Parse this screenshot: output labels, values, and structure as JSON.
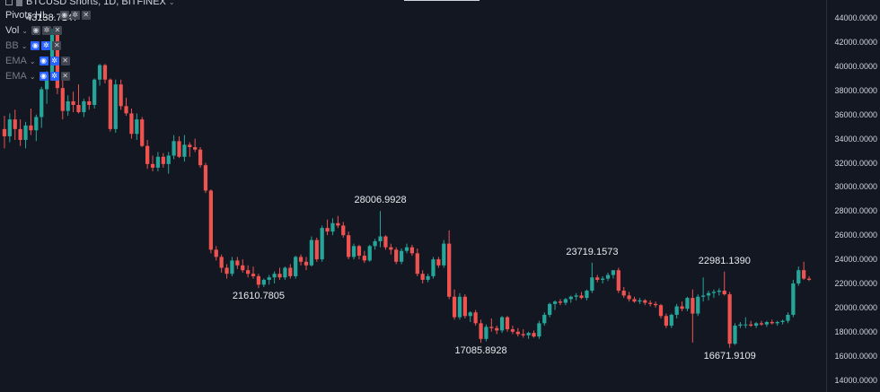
{
  "header": {
    "symbol_title": "BTCUSD Shorts, 1D, BITFINEX",
    "chevron": "⌄"
  },
  "legend": {
    "items": [
      {
        "label": "Pivots HL",
        "controls": [
          "eye-icon",
          "gear-icon",
          "close-icon"
        ],
        "dim": false
      },
      {
        "label": "Vol",
        "controls": [
          "eye-icon",
          "gear-icon",
          "close-icon"
        ],
        "dim": false
      },
      {
        "label": "BB",
        "controls": [
          "eye-off-icon",
          "gear-icon",
          "close-icon"
        ],
        "dim": true
      },
      {
        "label": "EMA",
        "controls": [
          "eye-off-icon",
          "gear-icon",
          "close-icon"
        ],
        "dim": true
      },
      {
        "label": "EMA",
        "controls": [
          "eye-off-icon",
          "gear-icon",
          "close-icon"
        ],
        "dim": true
      }
    ]
  },
  "colors": {
    "background": "#131722",
    "up": "#26a69a",
    "down": "#ef5350",
    "axis_text": "#d1d4dc",
    "accent": "#2962ff"
  },
  "chart_data": {
    "type": "candlestick",
    "yaxis": {
      "ylim": [
        13000,
        45500
      ],
      "ticks": [
        "14000.0000",
        "16000.0000",
        "18000.0000",
        "20000.0000",
        "22000.0000",
        "24000.0000",
        "26000.0000",
        "28000.0000",
        "30000.0000",
        "32000.0000",
        "34000.0000",
        "36000.0000",
        "38000.0000",
        "40000.0000",
        "42000.0000",
        "44000.0000"
      ]
    },
    "candles": [
      {
        "o": 34800,
        "h": 35900,
        "l": 33200,
        "c": 34200
      },
      {
        "o": 34200,
        "h": 36100,
        "l": 33700,
        "c": 35600
      },
      {
        "o": 35600,
        "h": 36400,
        "l": 33900,
        "c": 34800
      },
      {
        "o": 34800,
        "h": 35600,
        "l": 33400,
        "c": 33900
      },
      {
        "o": 33900,
        "h": 35400,
        "l": 33200,
        "c": 35100
      },
      {
        "o": 35100,
        "h": 36500,
        "l": 34300,
        "c": 34700
      },
      {
        "o": 34700,
        "h": 36000,
        "l": 33800,
        "c": 35800
      },
      {
        "o": 35800,
        "h": 38300,
        "l": 34900,
        "c": 38100
      },
      {
        "o": 38100,
        "h": 39600,
        "l": 36900,
        "c": 39300
      },
      {
        "o": 39300,
        "h": 43138,
        "l": 38800,
        "c": 42600
      },
      {
        "o": 42600,
        "h": 43100,
        "l": 37700,
        "c": 38200
      },
      {
        "o": 38200,
        "h": 39300,
        "l": 35600,
        "c": 36300
      },
      {
        "o": 36300,
        "h": 37600,
        "l": 35900,
        "c": 37100
      },
      {
        "o": 37100,
        "h": 37900,
        "l": 36200,
        "c": 36800
      },
      {
        "o": 36800,
        "h": 38500,
        "l": 36100,
        "c": 36200
      },
      {
        "o": 36200,
        "h": 37300,
        "l": 35800,
        "c": 37100
      },
      {
        "o": 37100,
        "h": 37500,
        "l": 36400,
        "c": 36800
      },
      {
        "o": 36800,
        "h": 39000,
        "l": 36500,
        "c": 38900
      },
      {
        "o": 38900,
        "h": 40200,
        "l": 38400,
        "c": 40100
      },
      {
        "o": 40100,
        "h": 40200,
        "l": 38600,
        "c": 38900
      },
      {
        "o": 38900,
        "h": 39000,
        "l": 34600,
        "c": 34800
      },
      {
        "o": 34800,
        "h": 38900,
        "l": 34500,
        "c": 38500
      },
      {
        "o": 38500,
        "h": 38900,
        "l": 36400,
        "c": 36700
      },
      {
        "o": 36700,
        "h": 37400,
        "l": 35900,
        "c": 36100
      },
      {
        "o": 36100,
        "h": 36500,
        "l": 34000,
        "c": 34400
      },
      {
        "o": 34400,
        "h": 36100,
        "l": 33900,
        "c": 35600
      },
      {
        "o": 35600,
        "h": 35800,
        "l": 33300,
        "c": 33400
      },
      {
        "o": 33400,
        "h": 33900,
        "l": 31500,
        "c": 31900
      },
      {
        "o": 31900,
        "h": 32600,
        "l": 31300,
        "c": 31600
      },
      {
        "o": 31600,
        "h": 32900,
        "l": 31300,
        "c": 32500
      },
      {
        "o": 32500,
        "h": 32800,
        "l": 31600,
        "c": 31900
      },
      {
        "o": 31900,
        "h": 32900,
        "l": 31100,
        "c": 32600
      },
      {
        "o": 32600,
        "h": 34300,
        "l": 32300,
        "c": 33800
      },
      {
        "o": 33800,
        "h": 34200,
        "l": 32400,
        "c": 32500
      },
      {
        "o": 32500,
        "h": 34300,
        "l": 32100,
        "c": 33500
      },
      {
        "o": 33500,
        "h": 33700,
        "l": 32500,
        "c": 33300
      },
      {
        "o": 33300,
        "h": 34000,
        "l": 32900,
        "c": 33100
      },
      {
        "o": 33100,
        "h": 33300,
        "l": 31600,
        "c": 31800
      },
      {
        "o": 31800,
        "h": 32000,
        "l": 29500,
        "c": 29700
      },
      {
        "o": 29700,
        "h": 29800,
        "l": 24500,
        "c": 24800
      },
      {
        "o": 24800,
        "h": 25100,
        "l": 23900,
        "c": 24200
      },
      {
        "o": 24200,
        "h": 24400,
        "l": 22900,
        "c": 23300
      },
      {
        "o": 23300,
        "h": 23600,
        "l": 22400,
        "c": 22800
      },
      {
        "o": 22800,
        "h": 24200,
        "l": 22600,
        "c": 23900
      },
      {
        "o": 23900,
        "h": 24200,
        "l": 23200,
        "c": 23500
      },
      {
        "o": 23500,
        "h": 24000,
        "l": 22900,
        "c": 23100
      },
      {
        "o": 23100,
        "h": 23500,
        "l": 22500,
        "c": 22800
      },
      {
        "o": 22800,
        "h": 23400,
        "l": 22400,
        "c": 22600
      },
      {
        "o": 22600,
        "h": 22800,
        "l": 21610,
        "c": 21900
      },
      {
        "o": 21900,
        "h": 22400,
        "l": 21700,
        "c": 22300
      },
      {
        "o": 22300,
        "h": 22700,
        "l": 21900,
        "c": 22500
      },
      {
        "o": 22500,
        "h": 23000,
        "l": 22000,
        "c": 22800
      },
      {
        "o": 22800,
        "h": 23300,
        "l": 22300,
        "c": 22500
      },
      {
        "o": 22500,
        "h": 23400,
        "l": 22300,
        "c": 23300
      },
      {
        "o": 23300,
        "h": 23600,
        "l": 22400,
        "c": 22600
      },
      {
        "o": 22600,
        "h": 24300,
        "l": 22400,
        "c": 24200
      },
      {
        "o": 24200,
        "h": 24400,
        "l": 23500,
        "c": 23800
      },
      {
        "o": 23800,
        "h": 24200,
        "l": 23100,
        "c": 23500
      },
      {
        "o": 23500,
        "h": 25900,
        "l": 23400,
        "c": 25600
      },
      {
        "o": 25600,
        "h": 25800,
        "l": 23800,
        "c": 24000
      },
      {
        "o": 24000,
        "h": 26800,
        "l": 23800,
        "c": 26600
      },
      {
        "o": 26600,
        "h": 27300,
        "l": 26000,
        "c": 26300
      },
      {
        "o": 26300,
        "h": 27400,
        "l": 26000,
        "c": 27000
      },
      {
        "o": 27000,
        "h": 27600,
        "l": 26600,
        "c": 26800
      },
      {
        "o": 26800,
        "h": 27100,
        "l": 25800,
        "c": 26000
      },
      {
        "o": 26000,
        "h": 26300,
        "l": 24000,
        "c": 24200
      },
      {
        "o": 24200,
        "h": 25300,
        "l": 24000,
        "c": 25100
      },
      {
        "o": 25100,
        "h": 25200,
        "l": 24000,
        "c": 24300
      },
      {
        "o": 24300,
        "h": 24700,
        "l": 23700,
        "c": 23900
      },
      {
        "o": 23900,
        "h": 25200,
        "l": 23800,
        "c": 25100
      },
      {
        "o": 25100,
        "h": 25700,
        "l": 24800,
        "c": 25500
      },
      {
        "o": 25500,
        "h": 28006,
        "l": 25000,
        "c": 25900
      },
      {
        "o": 25900,
        "h": 26000,
        "l": 24800,
        "c": 25000
      },
      {
        "o": 25000,
        "h": 25300,
        "l": 24400,
        "c": 24800
      },
      {
        "o": 24800,
        "h": 25000,
        "l": 23600,
        "c": 23800
      },
      {
        "o": 23800,
        "h": 24900,
        "l": 23600,
        "c": 24700
      },
      {
        "o": 24700,
        "h": 25300,
        "l": 24500,
        "c": 25000
      },
      {
        "o": 25000,
        "h": 25200,
        "l": 24300,
        "c": 24500
      },
      {
        "o": 24500,
        "h": 24900,
        "l": 22600,
        "c": 22800
      },
      {
        "o": 22800,
        "h": 23100,
        "l": 22000,
        "c": 22300
      },
      {
        "o": 22300,
        "h": 22800,
        "l": 22100,
        "c": 22600
      },
      {
        "o": 22600,
        "h": 24200,
        "l": 22400,
        "c": 24000
      },
      {
        "o": 24000,
        "h": 24200,
        "l": 23300,
        "c": 23500
      },
      {
        "o": 23500,
        "h": 25600,
        "l": 23300,
        "c": 25300
      },
      {
        "o": 25300,
        "h": 26400,
        "l": 20700,
        "c": 20900
      },
      {
        "o": 20900,
        "h": 21500,
        "l": 19000,
        "c": 19200
      },
      {
        "o": 19200,
        "h": 21200,
        "l": 19000,
        "c": 20900
      },
      {
        "o": 20900,
        "h": 21100,
        "l": 19100,
        "c": 19300
      },
      {
        "o": 19300,
        "h": 19700,
        "l": 18800,
        "c": 19600
      },
      {
        "o": 19600,
        "h": 19800,
        "l": 18500,
        "c": 18700
      },
      {
        "o": 18700,
        "h": 19000,
        "l": 17086,
        "c": 17400
      },
      {
        "o": 17400,
        "h": 18600,
        "l": 17200,
        "c": 18400
      },
      {
        "o": 18400,
        "h": 19100,
        "l": 18000,
        "c": 18300
      },
      {
        "o": 18300,
        "h": 18500,
        "l": 17800,
        "c": 18100
      },
      {
        "o": 18100,
        "h": 19300,
        "l": 17900,
        "c": 19200
      },
      {
        "o": 19200,
        "h": 19300,
        "l": 18000,
        "c": 18200
      },
      {
        "o": 18200,
        "h": 18500,
        "l": 17800,
        "c": 18000
      },
      {
        "o": 18000,
        "h": 18300,
        "l": 17600,
        "c": 17800
      },
      {
        "o": 17800,
        "h": 18200,
        "l": 17500,
        "c": 17700
      },
      {
        "o": 17700,
        "h": 18000,
        "l": 17400,
        "c": 17900
      },
      {
        "o": 17900,
        "h": 18100,
        "l": 17500,
        "c": 17600
      },
      {
        "o": 17600,
        "h": 18900,
        "l": 17400,
        "c": 18700
      },
      {
        "o": 18700,
        "h": 19600,
        "l": 18500,
        "c": 19400
      },
      {
        "o": 19400,
        "h": 20400,
        "l": 19200,
        "c": 20300
      },
      {
        "o": 20300,
        "h": 20600,
        "l": 19800,
        "c": 20500
      },
      {
        "o": 20500,
        "h": 20700,
        "l": 20200,
        "c": 20400
      },
      {
        "o": 20400,
        "h": 20800,
        "l": 20200,
        "c": 20700
      },
      {
        "o": 20700,
        "h": 21000,
        "l": 20400,
        "c": 20900
      },
      {
        "o": 20900,
        "h": 21200,
        "l": 20600,
        "c": 21000
      },
      {
        "o": 21000,
        "h": 21300,
        "l": 20700,
        "c": 20800
      },
      {
        "o": 20800,
        "h": 21500,
        "l": 20600,
        "c": 21400
      },
      {
        "o": 21400,
        "h": 23719,
        "l": 21200,
        "c": 22500
      },
      {
        "o": 22500,
        "h": 22700,
        "l": 22100,
        "c": 22300
      },
      {
        "o": 22300,
        "h": 22600,
        "l": 22000,
        "c": 22400
      },
      {
        "o": 22400,
        "h": 22900,
        "l": 22200,
        "c": 22700
      },
      {
        "o": 22700,
        "h": 23000,
        "l": 22400,
        "c": 23100
      },
      {
        "o": 23100,
        "h": 23300,
        "l": 21200,
        "c": 21400
      },
      {
        "o": 21400,
        "h": 21700,
        "l": 20800,
        "c": 21000
      },
      {
        "o": 21000,
        "h": 21300,
        "l": 20500,
        "c": 20700
      },
      {
        "o": 20700,
        "h": 20900,
        "l": 20400,
        "c": 20500
      },
      {
        "o": 20500,
        "h": 20800,
        "l": 20300,
        "c": 20600
      },
      {
        "o": 20600,
        "h": 20700,
        "l": 20200,
        "c": 20400
      },
      {
        "o": 20400,
        "h": 20600,
        "l": 20100,
        "c": 20300
      },
      {
        "o": 20300,
        "h": 20500,
        "l": 20000,
        "c": 20200
      },
      {
        "o": 20200,
        "h": 20300,
        "l": 19100,
        "c": 19300
      },
      {
        "o": 19300,
        "h": 19500,
        "l": 18300,
        "c": 18500
      },
      {
        "o": 18500,
        "h": 19500,
        "l": 18300,
        "c": 19400
      },
      {
        "o": 19400,
        "h": 20300,
        "l": 19100,
        "c": 20100
      },
      {
        "o": 20100,
        "h": 20500,
        "l": 19700,
        "c": 19900
      },
      {
        "o": 19900,
        "h": 20900,
        "l": 19700,
        "c": 20800
      },
      {
        "o": 20800,
        "h": 21500,
        "l": 17100,
        "c": 19500
      },
      {
        "o": 19500,
        "h": 21100,
        "l": 19300,
        "c": 20900
      },
      {
        "o": 20900,
        "h": 22500,
        "l": 20500,
        "c": 21000
      },
      {
        "o": 21000,
        "h": 21400,
        "l": 20600,
        "c": 21200
      },
      {
        "o": 21200,
        "h": 21500,
        "l": 20800,
        "c": 21300
      },
      {
        "o": 21300,
        "h": 21600,
        "l": 21000,
        "c": 21400
      },
      {
        "o": 21400,
        "h": 22981,
        "l": 21000,
        "c": 21100
      },
      {
        "o": 21100,
        "h": 21300,
        "l": 16672,
        "c": 17000
      },
      {
        "o": 17000,
        "h": 18700,
        "l": 16900,
        "c": 18500
      },
      {
        "o": 18500,
        "h": 18800,
        "l": 18300,
        "c": 18600
      },
      {
        "o": 18600,
        "h": 19200,
        "l": 18300,
        "c": 18600
      },
      {
        "o": 18600,
        "h": 18900,
        "l": 18400,
        "c": 18500
      },
      {
        "o": 18500,
        "h": 18800,
        "l": 18300,
        "c": 18700
      },
      {
        "o": 18700,
        "h": 18900,
        "l": 18500,
        "c": 18600
      },
      {
        "o": 18600,
        "h": 18900,
        "l": 18400,
        "c": 18800
      },
      {
        "o": 18800,
        "h": 19000,
        "l": 18600,
        "c": 18700
      },
      {
        "o": 18700,
        "h": 18900,
        "l": 18500,
        "c": 18800
      },
      {
        "o": 18800,
        "h": 19000,
        "l": 18600,
        "c": 18900
      },
      {
        "o": 18900,
        "h": 19600,
        "l": 18700,
        "c": 19400
      },
      {
        "o": 19400,
        "h": 22300,
        "l": 19200,
        "c": 22000
      },
      {
        "o": 22000,
        "h": 23400,
        "l": 21800,
        "c": 23100
      },
      {
        "o": 23100,
        "h": 23800,
        "l": 22300,
        "c": 22400
      },
      {
        "o": 22400,
        "h": 22600,
        "l": 22200,
        "c": 22300
      }
    ],
    "pivots": [
      {
        "label": "43138.7147",
        "type": "high",
        "index": 9
      },
      {
        "label": "28006.9928",
        "type": "high",
        "index": 71
      },
      {
        "label": "23719.1573",
        "type": "high",
        "index": 111
      },
      {
        "label": "22981.1390",
        "type": "high",
        "index": 136
      },
      {
        "label": "21610.7805",
        "type": "low",
        "index": 48
      },
      {
        "label": "17085.8928",
        "type": "low",
        "index": 90
      },
      {
        "label": "16671.9109",
        "type": "low",
        "index": 137
      }
    ]
  }
}
